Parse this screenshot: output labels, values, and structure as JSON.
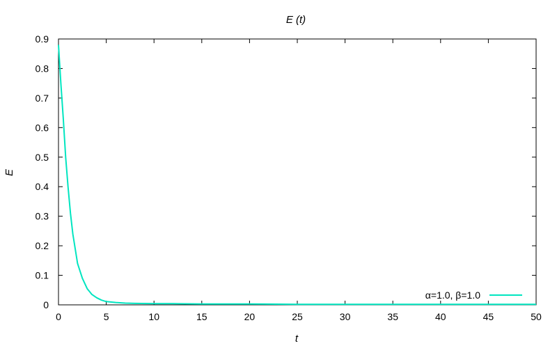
{
  "chart_data": {
    "type": "line",
    "title": "E (t)",
    "xlabel": "t",
    "ylabel": "E",
    "xlim": [
      0,
      50
    ],
    "ylim": [
      0,
      0.9
    ],
    "xticks": [
      "0",
      "5",
      "10",
      "15",
      "20",
      "25",
      "30",
      "35",
      "40",
      "45",
      "50"
    ],
    "yticks": [
      "0",
      "0.1",
      "0.2",
      "0.3",
      "0.4",
      "0.5",
      "0.6",
      "0.7",
      "0.8",
      "0.9"
    ],
    "grid": false,
    "legend_position": "bottom-right",
    "series": [
      {
        "name": "α=1.0, β=1.0",
        "color": "#00e5c0",
        "x": [
          0,
          0.25,
          0.5,
          0.75,
          1.0,
          1.25,
          1.5,
          1.75,
          2.0,
          2.5,
          3.0,
          3.5,
          4.0,
          4.5,
          5.0,
          6.0,
          7.0,
          8.0,
          10.0,
          12.0,
          15.0,
          20.0,
          25.0,
          30.0,
          35.0,
          40.0,
          45.0,
          50.0
        ],
        "y": [
          0.88,
          0.75,
          0.63,
          0.5,
          0.4,
          0.31,
          0.24,
          0.19,
          0.14,
          0.09,
          0.055,
          0.035,
          0.024,
          0.016,
          0.011,
          0.008,
          0.006,
          0.005,
          0.004,
          0.004,
          0.003,
          0.003,
          0.002,
          0.002,
          0.002,
          0.002,
          0.002,
          0.002
        ]
      }
    ]
  }
}
